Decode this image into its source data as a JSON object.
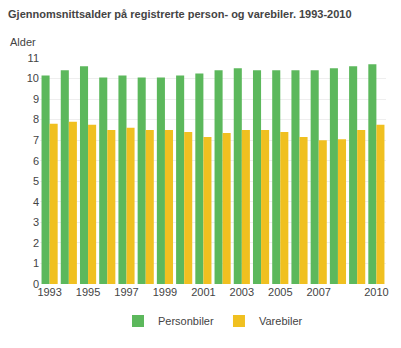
{
  "chart_data": {
    "type": "bar",
    "title": "Gjennomsnittsalder på registrerte person- og varebiler. 1993-2010",
    "ylabel": "Alder",
    "categories": [
      "1993",
      null,
      "1995",
      null,
      "1997",
      null,
      "1999",
      null,
      "2001",
      null,
      "2003",
      null,
      "2005",
      null,
      "2007",
      null,
      null,
      "2010"
    ],
    "series": [
      {
        "name": "Personbiler",
        "color": "#5cb85c",
        "values": [
          10.15,
          10.4,
          10.6,
          10.05,
          10.15,
          10.05,
          10.05,
          10.15,
          10.25,
          10.4,
          10.5,
          10.4,
          10.4,
          10.4,
          10.4,
          10.5,
          10.6,
          10.7
        ]
      },
      {
        "name": "Varebiler",
        "color": "#f0c020",
        "values": [
          7.8,
          7.9,
          7.75,
          7.5,
          7.6,
          7.5,
          7.5,
          7.4,
          7.15,
          7.35,
          7.5,
          7.5,
          7.4,
          7.15,
          7.0,
          7.05,
          7.5,
          7.75
        ]
      }
    ],
    "ylim": [
      0,
      11
    ],
    "yticks": [
      0,
      1,
      2,
      3,
      4,
      5,
      6,
      7,
      8,
      9,
      10,
      11
    ],
    "grid": true,
    "legend": "bottom"
  }
}
